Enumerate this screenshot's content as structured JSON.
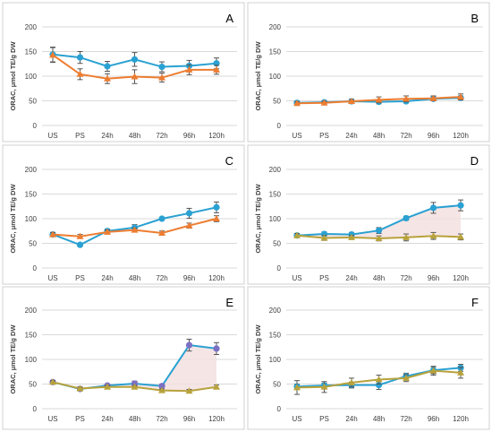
{
  "figure": {
    "categories": [
      "US",
      "PS",
      "24h",
      "48h",
      "72h",
      "96h",
      "120h"
    ]
  },
  "colors": {
    "blue": "#2aa1d2",
    "orange": "#ed7d31",
    "olive": "#b8a23c",
    "purple_marker": "#7a70c4",
    "shade": "#f3dede"
  },
  "chart_data": [
    {
      "panel": "A",
      "type": "line",
      "ylabel": "ORAC, μmol TE/g DW",
      "ylim": [
        0,
        200
      ],
      "yticks": [
        0,
        50,
        100,
        150,
        200
      ],
      "categories": [
        "US",
        "PS",
        "24h",
        "48h",
        "72h",
        "96h",
        "120h"
      ],
      "series": [
        {
          "color": "#2aa1d2",
          "marker": "circle",
          "values": [
            144,
            138,
            120,
            134,
            119,
            121,
            126
          ],
          "errors": [
            15,
            12,
            10,
            14,
            10,
            11,
            11
          ]
        },
        {
          "color": "#ed7d31",
          "marker": "triangle",
          "values": [
            143,
            104,
            95,
            99,
            97,
            113,
            113
          ],
          "errors": [
            15,
            11,
            10,
            14,
            9,
            10,
            9
          ]
        }
      ]
    },
    {
      "panel": "B",
      "type": "line",
      "ylabel": "ORAC, μmol TE/g DW",
      "ylim": [
        0,
        200
      ],
      "yticks": [
        0,
        50,
        100,
        150,
        200
      ],
      "categories": [
        "US",
        "PS",
        "24h",
        "48h",
        "72h",
        "96h",
        "120h"
      ],
      "series": [
        {
          "color": "#2aa1d2",
          "marker": "circle",
          "values": [
            46,
            47,
            49,
            48,
            49,
            54,
            56
          ],
          "errors": [
            3,
            3,
            3,
            4,
            3,
            4,
            4
          ]
        },
        {
          "color": "#ed7d31",
          "marker": "triangle",
          "values": [
            45,
            46,
            49,
            52,
            54,
            55,
            58
          ],
          "errors": [
            3,
            3,
            4,
            6,
            6,
            5,
            6
          ]
        }
      ]
    },
    {
      "panel": "C",
      "type": "line",
      "ylabel": "ORAC, μmol TE/g DW",
      "ylim": [
        0,
        200
      ],
      "yticks": [
        0,
        50,
        100,
        150,
        200
      ],
      "categories": [
        "US",
        "PS",
        "24h",
        "48h",
        "72h",
        "96h",
        "120h"
      ],
      "series": [
        {
          "color": "#2aa1d2",
          "marker": "circle",
          "values": [
            68,
            47,
            75,
            82,
            100,
            111,
            123
          ],
          "errors": [
            4,
            3,
            4,
            6,
            3,
            10,
            11
          ]
        },
        {
          "color": "#ed7d31",
          "marker": "triangle",
          "values": [
            68,
            64,
            73,
            77,
            71,
            86,
            100
          ],
          "errors": [
            4,
            4,
            4,
            4,
            4,
            5,
            6
          ]
        }
      ]
    },
    {
      "panel": "D",
      "type": "line",
      "ylabel": "ORAC, μmol TE/g DW",
      "ylim": [
        0,
        200
      ],
      "yticks": [
        0,
        50,
        100,
        150,
        200
      ],
      "categories": [
        "US",
        "PS",
        "24h",
        "48h",
        "72h",
        "96h",
        "120h"
      ],
      "series": [
        {
          "color": "#2aa1d2",
          "marker": "circle",
          "values": [
            66,
            69,
            68,
            76,
            101,
            122,
            127
          ],
          "errors": [
            4,
            4,
            4,
            6,
            4,
            11,
            11
          ]
        },
        {
          "color": "#b8a23c",
          "marker": "triangle",
          "values": [
            66,
            61,
            62,
            60,
            62,
            65,
            63
          ],
          "errors": [
            4,
            5,
            4,
            5,
            7,
            7,
            6
          ]
        }
      ]
    },
    {
      "panel": "E",
      "type": "line",
      "ylabel": "ORAC, μmol TE/g DW",
      "ylim": [
        0,
        200
      ],
      "yticks": [
        0,
        50,
        100,
        150,
        200
      ],
      "categories": [
        "US",
        "PS",
        "24h",
        "48h",
        "72h",
        "96h",
        "120h"
      ],
      "series": [
        {
          "color": "#2aa1d2",
          "marker": "circle",
          "values": [
            54,
            40,
            47,
            51,
            46,
            129,
            122
          ],
          "errors": [
            3,
            3,
            3,
            5,
            3,
            12,
            12
          ]
        },
        {
          "color": "#b8a23c",
          "marker": "triangle",
          "values": [
            54,
            41,
            44,
            44,
            37,
            36,
            44
          ],
          "errors": [
            3,
            3,
            3,
            3,
            3,
            3,
            4
          ]
        }
      ]
    },
    {
      "panel": "F",
      "type": "line",
      "ylabel": "ORAC, μmol TE/g DW",
      "ylim": [
        0,
        200
      ],
      "yticks": [
        0,
        50,
        100,
        150,
        200
      ],
      "categories": [
        "US",
        "PS",
        "24h",
        "48h",
        "72h",
        "96h",
        "120h"
      ],
      "series": [
        {
          "color": "#2aa1d2",
          "marker": "circle",
          "values": [
            45,
            47,
            48,
            48,
            66,
            78,
            83
          ],
          "errors": [
            5,
            5,
            6,
            9,
            6,
            7,
            7
          ]
        },
        {
          "color": "#b8a23c",
          "marker": "triangle",
          "values": [
            43,
            44,
            53,
            59,
            62,
            77,
            73
          ],
          "errors": [
            14,
            11,
            9,
            9,
            7,
            9,
            11
          ]
        }
      ]
    }
  ]
}
